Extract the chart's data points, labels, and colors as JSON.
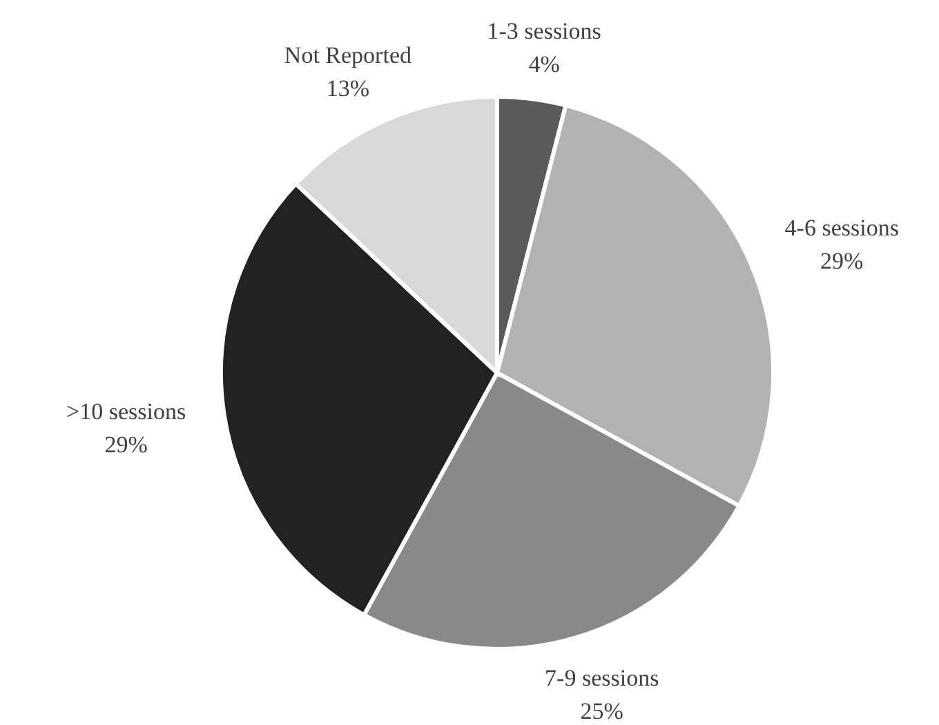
{
  "chart_data": {
    "type": "pie",
    "categories": [
      "1-3 sessions",
      "4-6 sessions",
      "7-9 sessions",
      ">10 sessions",
      "Not Reported"
    ],
    "values": [
      4,
      29,
      25,
      29,
      13
    ],
    "value_labels": [
      "4%",
      "29%",
      "25%",
      "29%",
      "13%"
    ],
    "colors": [
      "#5a5a5a",
      "#b2b2b2",
      "#898989",
      "#222222",
      "#d9d9d9"
    ]
  }
}
